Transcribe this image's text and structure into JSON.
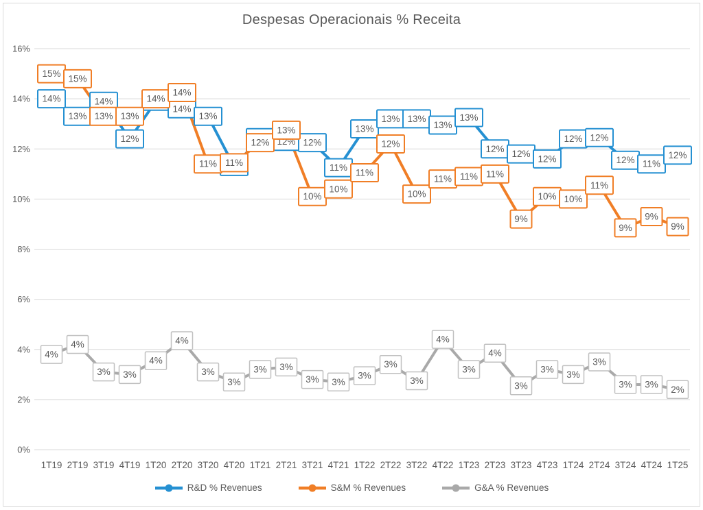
{
  "chart_data": {
    "type": "line",
    "title": "Despesas Operacionais % Receita",
    "categories": [
      "1T19",
      "2T19",
      "3T19",
      "4T19",
      "1T20",
      "2T20",
      "3T20",
      "4T20",
      "1T21",
      "2T21",
      "3T21",
      "4T21",
      "1T22",
      "2T22",
      "3T22",
      "4T22",
      "1T23",
      "2T23",
      "3T23",
      "4T23",
      "1T24",
      "2T24",
      "3T24",
      "4T24",
      "1T25"
    ],
    "y_axis": {
      "min": 0,
      "max": 16,
      "step": 2,
      "tick_labels": [
        "0%",
        "2%",
        "4%",
        "6%",
        "8%",
        "10%",
        "12%",
        "14%",
        "16%"
      ]
    },
    "grid": true,
    "legend_position": "bottom",
    "colors": {
      "grid": "#d9d9d9",
      "axis_text": "#595959",
      "label_text": "#595959",
      "label_fill": "#ffffff"
    },
    "series": [
      {
        "id": "rd",
        "name": "R&D % Revenues",
        "color": "#2590d2",
        "box_border": "#2590d2",
        "box_stroke_width": 2,
        "data_labels": [
          "14%",
          "13%",
          "14%",
          "12%",
          "14%",
          "14%",
          "13%",
          "11%",
          "12%",
          "12%",
          "12%",
          "11%",
          "13%",
          "13%",
          "13%",
          "13%",
          "13%",
          "12%",
          "12%",
          "12%",
          "12%",
          "12%",
          "12%",
          "11%",
          "12%"
        ],
        "values": [
          14,
          13,
          14,
          12,
          14,
          14,
          13,
          11,
          12,
          12,
          12,
          11,
          13,
          13,
          13,
          13,
          13,
          12,
          12,
          12,
          12,
          12,
          12,
          11,
          12
        ],
        "values_plot": [
          14.0,
          13.3,
          13.9,
          12.4,
          13.9,
          13.6,
          13.3,
          11.3,
          12.45,
          12.3,
          12.25,
          11.25,
          12.8,
          13.2,
          13.2,
          12.95,
          13.25,
          12.0,
          11.8,
          11.6,
          12.4,
          12.45,
          11.55,
          11.4,
          11.75
        ]
      },
      {
        "id": "sm",
        "name": "S&M % Revenues",
        "color": "#f07e26",
        "box_border": "#f07e26",
        "box_stroke_width": 2,
        "data_labels": [
          "15%",
          "15%",
          "13%",
          "13%",
          "14%",
          "14%",
          "11%",
          "11%",
          "12%",
          "13%",
          "10%",
          "10%",
          "11%",
          "12%",
          "10%",
          "11%",
          "11%",
          "11%",
          "9%",
          "10%",
          "10%",
          "11%",
          "9%",
          "9%",
          "9%"
        ],
        "values": [
          15,
          15,
          13,
          13,
          14,
          14,
          11,
          11,
          12,
          13,
          10,
          10,
          11,
          12,
          10,
          11,
          11,
          11,
          9,
          10,
          10,
          11,
          9,
          9,
          9
        ],
        "values_plot": [
          15.0,
          14.8,
          13.3,
          13.3,
          14.0,
          14.25,
          11.4,
          11.45,
          12.25,
          12.75,
          10.1,
          10.4,
          11.05,
          12.2,
          10.2,
          10.8,
          10.9,
          11.0,
          9.2,
          10.1,
          10.0,
          10.55,
          8.85,
          9.3,
          8.9
        ]
      },
      {
        "id": "ga",
        "name": "G&A % Revenues",
        "color": "#a9a9a9",
        "box_border": "#c0c0c0",
        "box_stroke_width": 1.5,
        "data_labels": [
          "4%",
          "4%",
          "3%",
          "3%",
          "4%",
          "4%",
          "3%",
          "3%",
          "3%",
          "3%",
          "3%",
          "3%",
          "3%",
          "3%",
          "3%",
          "4%",
          "3%",
          "4%",
          "3%",
          "3%",
          "3%",
          "3%",
          "3%",
          "3%",
          "2%"
        ],
        "values": [
          4,
          4,
          3,
          3,
          4,
          4,
          3,
          3,
          3,
          3,
          3,
          3,
          3,
          3,
          3,
          4,
          3,
          4,
          3,
          3,
          3,
          3,
          3,
          3,
          2
        ],
        "values_plot": [
          3.8,
          4.2,
          3.1,
          3.0,
          3.55,
          4.35,
          3.1,
          2.7,
          3.2,
          3.3,
          2.8,
          2.7,
          2.95,
          3.4,
          2.75,
          4.4,
          3.2,
          3.85,
          2.55,
          3.2,
          3.0,
          3.5,
          2.6,
          2.6,
          2.4
        ]
      }
    ]
  }
}
